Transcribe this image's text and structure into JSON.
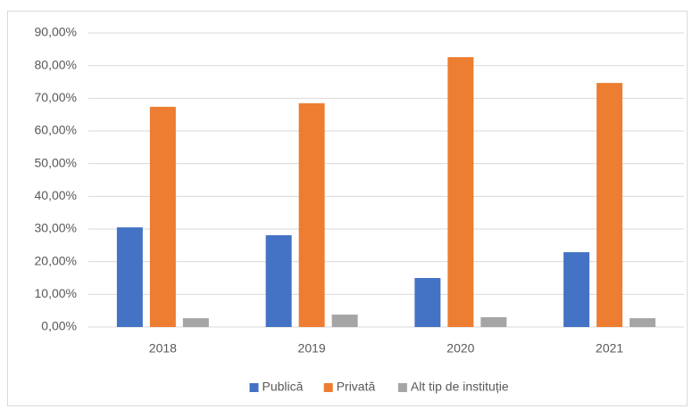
{
  "chart_data": {
    "type": "bar",
    "categories": [
      "2018",
      "2019",
      "2020",
      "2021"
    ],
    "series": [
      {
        "name": "Publică",
        "color": "#4472c4",
        "values": [
          30.5,
          28.1,
          15.0,
          22.9
        ]
      },
      {
        "name": "Privată",
        "color": "#ed7d31",
        "values": [
          67.4,
          68.5,
          82.6,
          74.7
        ]
      },
      {
        "name": "Alt tip de instituție",
        "color": "#a5a5a5",
        "values": [
          2.7,
          3.8,
          3.0,
          2.7
        ]
      }
    ],
    "ylim": [
      0,
      90
    ],
    "yticks": [
      {
        "value": 0,
        "label": "0,00%"
      },
      {
        "value": 10,
        "label": "10,00%"
      },
      {
        "value": 20,
        "label": "20,00%"
      },
      {
        "value": 30,
        "label": "30,00%"
      },
      {
        "value": 40,
        "label": "40,00%"
      },
      {
        "value": 50,
        "label": "50,00%"
      },
      {
        "value": 60,
        "label": "60,00%"
      },
      {
        "value": 70,
        "label": "70,00%"
      },
      {
        "value": 80,
        "label": "80,00%"
      },
      {
        "value": 90,
        "label": "90,00%"
      }
    ],
    "grid": true,
    "legend": "bottom"
  }
}
